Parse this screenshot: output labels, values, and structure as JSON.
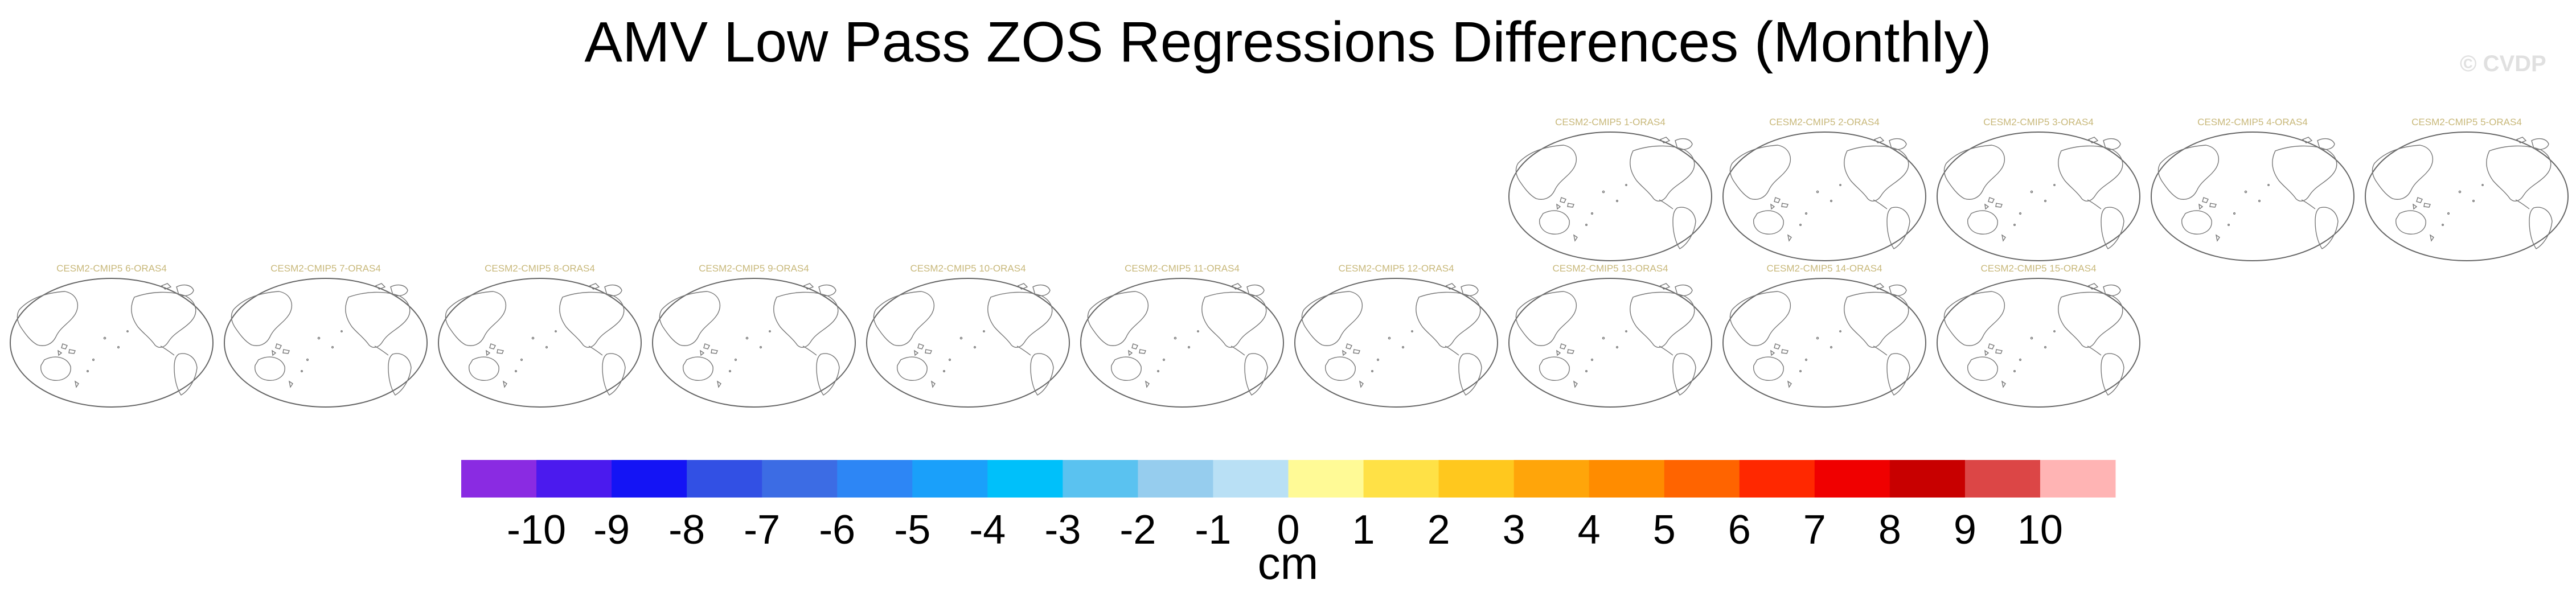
{
  "title": "AMV Low Pass ZOS Regressions Differences (Monthly)",
  "watermark": "© CVDP",
  "panels": [
    {
      "label": "CESM2-CMIP5 1-ORAS4",
      "row": 0,
      "col": 7
    },
    {
      "label": "CESM2-CMIP5 2-ORAS4",
      "row": 0,
      "col": 8
    },
    {
      "label": "CESM2-CMIP5 3-ORAS4",
      "row": 0,
      "col": 9
    },
    {
      "label": "CESM2-CMIP5 4-ORAS4",
      "row": 0,
      "col": 10
    },
    {
      "label": "CESM2-CMIP5 5-ORAS4",
      "row": 0,
      "col": 11
    },
    {
      "label": "CESM2-CMIP5 6-ORAS4",
      "row": 1,
      "col": 0
    },
    {
      "label": "CESM2-CMIP5 7-ORAS4",
      "row": 1,
      "col": 1
    },
    {
      "label": "CESM2-CMIP5 8-ORAS4",
      "row": 1,
      "col": 2
    },
    {
      "label": "CESM2-CMIP5 9-ORAS4",
      "row": 1,
      "col": 3
    },
    {
      "label": "CESM2-CMIP5 10-ORAS4",
      "row": 1,
      "col": 4
    },
    {
      "label": "CESM2-CMIP5 11-ORAS4",
      "row": 1,
      "col": 5
    },
    {
      "label": "CESM2-CMIP5 12-ORAS4",
      "row": 1,
      "col": 6
    },
    {
      "label": "CESM2-CMIP5 13-ORAS4",
      "row": 1,
      "col": 7
    },
    {
      "label": "CESM2-CMIP5 14-ORAS4",
      "row": 1,
      "col": 8
    },
    {
      "label": "CESM2-CMIP5 15-ORAS4",
      "row": 1,
      "col": 9
    }
  ],
  "colorbar": {
    "units": "cm",
    "ticks": [
      "-10",
      "-9",
      "-8",
      "-7",
      "-6",
      "-5",
      "-4",
      "-3",
      "-2",
      "-1",
      "0",
      "1",
      "2",
      "3",
      "4",
      "5",
      "6",
      "7",
      "8",
      "9",
      "10"
    ],
    "colors": [
      "#8a2be2",
      "#4b1aee",
      "#1414f5",
      "#3250e4",
      "#3c6ce4",
      "#2d86f5",
      "#1aa0fa",
      "#00c0fa",
      "#5ac2f0",
      "#96cdee",
      "#b9e0f5",
      "#fffa96",
      "#ffe146",
      "#ffc81e",
      "#ffa50a",
      "#ff8c00",
      "#ff6400",
      "#ff2800",
      "#f00000",
      "#c80000",
      "#dc4646",
      "#ffb4b4"
    ]
  }
}
